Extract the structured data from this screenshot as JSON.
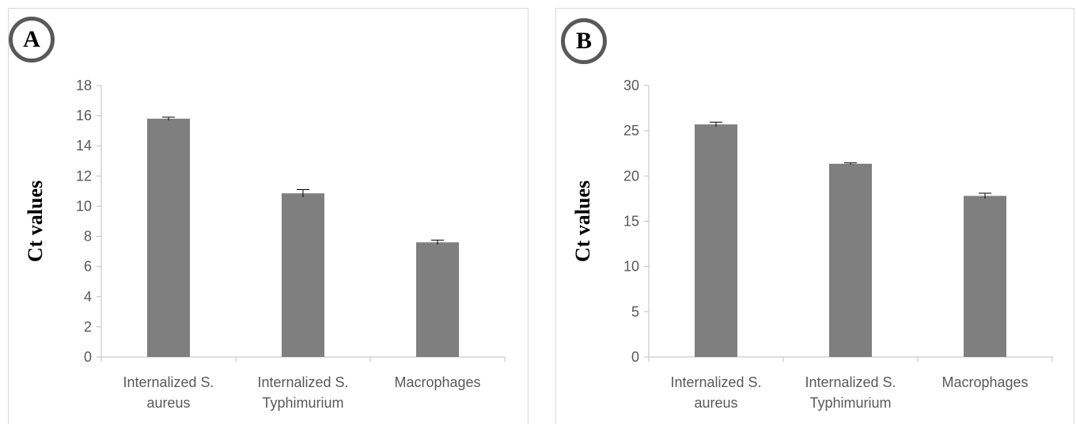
{
  "panels": [
    {
      "label": "A"
    },
    {
      "label": "B"
    }
  ],
  "chart_data": [
    {
      "type": "bar",
      "panel_label": "A",
      "categories": [
        [
          "Internalized S.",
          "aureus"
        ],
        [
          "Internalized S.",
          "Typhimurium"
        ],
        [
          "Macrophages"
        ]
      ],
      "values": [
        15.8,
        10.85,
        7.6
      ],
      "error": [
        0.1,
        0.25,
        0.15
      ],
      "ylabel": "Ct values",
      "ylim": [
        0,
        18
      ],
      "yticks": [
        0,
        2,
        4,
        6,
        8,
        10,
        12,
        14,
        16,
        18
      ],
      "bar_color": "#7f7f7f",
      "grid": false
    },
    {
      "type": "bar",
      "panel_label": "B",
      "categories": [
        [
          "Internalized S.",
          "aureus"
        ],
        [
          "Internalized S.",
          "Typhimurium"
        ],
        [
          "Macrophages"
        ]
      ],
      "values": [
        25.7,
        21.35,
        17.8
      ],
      "error": [
        0.25,
        0.1,
        0.3
      ],
      "ylabel": "Ct values",
      "ylim": [
        0,
        30
      ],
      "yticks": [
        0,
        5,
        10,
        15,
        20,
        25,
        30
      ],
      "bar_color": "#7f7f7f",
      "grid": false
    }
  ]
}
